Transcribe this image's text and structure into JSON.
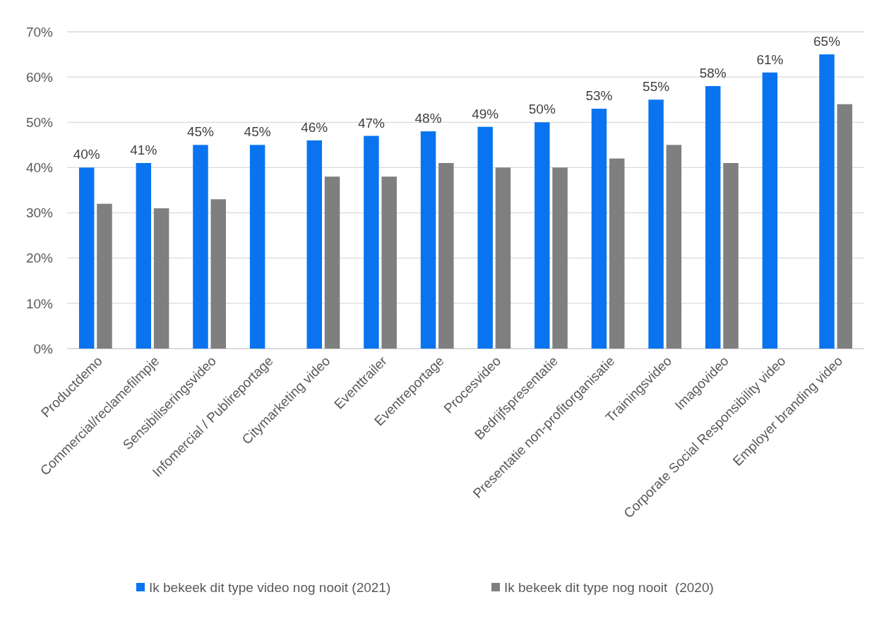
{
  "chart_data": {
    "type": "bar",
    "categories": [
      "Productdemo",
      "Commercial/reclamefilmpje",
      "Sensibiliseringsvideo",
      "Infomercial / Publireportage",
      "Citymarketing video",
      "Eventtrailer",
      "Eventreportage",
      "Procesvideo",
      "Bedrijfspresentatie",
      "Presentatie non-profitorganisatie",
      "Trainingsvideo",
      "Imagovideo",
      "Corporate Social Responsibility video",
      "Employer branding video"
    ],
    "series": [
      {
        "name": "Ik bekeek dit type video nog nooit (2021)",
        "color": "#0a74f0",
        "values": [
          40,
          41,
          45,
          45,
          46,
          47,
          48,
          49,
          50,
          53,
          55,
          58,
          61,
          65
        ],
        "value_labels": [
          "40%",
          "41%",
          "45%",
          "45%",
          "46%",
          "47%",
          "48%",
          "49%",
          "50%",
          "53%",
          "55%",
          "58%",
          "61%",
          "65%"
        ]
      },
      {
        "name": "Ik bekeek dit type nog nooit  (2020)",
        "color": "#7f7f7f",
        "values": [
          32,
          31,
          33,
          null,
          38,
          38,
          41,
          40,
          40,
          42,
          45,
          41,
          null,
          54
        ]
      }
    ],
    "ylim": [
      0,
      70
    ],
    "yticks": [
      {
        "value": 0,
        "label": "0%"
      },
      {
        "value": 10,
        "label": "10%"
      },
      {
        "value": 20,
        "label": "20%"
      },
      {
        "value": 30,
        "label": "30%"
      },
      {
        "value": 40,
        "label": "40%"
      },
      {
        "value": 50,
        "label": "50%"
      },
      {
        "value": 60,
        "label": "60%"
      },
      {
        "value": 70,
        "label": "70%"
      }
    ],
    "grid": "y",
    "legend": "bottom"
  }
}
